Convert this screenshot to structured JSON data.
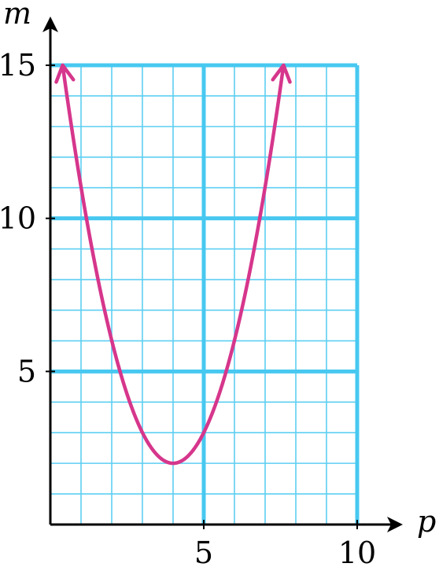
{
  "chart_data": {
    "type": "line",
    "xlabel": "p",
    "ylabel": "m",
    "xlim": [
      0,
      10
    ],
    "ylim": [
      0,
      15
    ],
    "x_ticks": [
      "5",
      "10"
    ],
    "y_ticks": [
      "5",
      "10",
      "15"
    ],
    "x_tick_values": [
      5,
      10
    ],
    "y_tick_values": [
      5,
      10,
      15
    ],
    "minor_step": 1,
    "major_step": 5,
    "grid": true,
    "series": [
      {
        "vertex": [
          4,
          2
        ],
        "x": [
          0.4,
          1,
          2,
          3,
          4,
          5,
          6,
          7,
          7.6
        ],
        "y": [
          15,
          12.8,
          6.4,
          3,
          2,
          3,
          6.4,
          12.8,
          15
        ],
        "arrows_at_ends": true
      }
    ],
    "colors": {
      "grid_minor": "#5dcff2",
      "grid_major": "#47c8f0",
      "curve": "#d6368c",
      "axis": "#000000"
    }
  }
}
